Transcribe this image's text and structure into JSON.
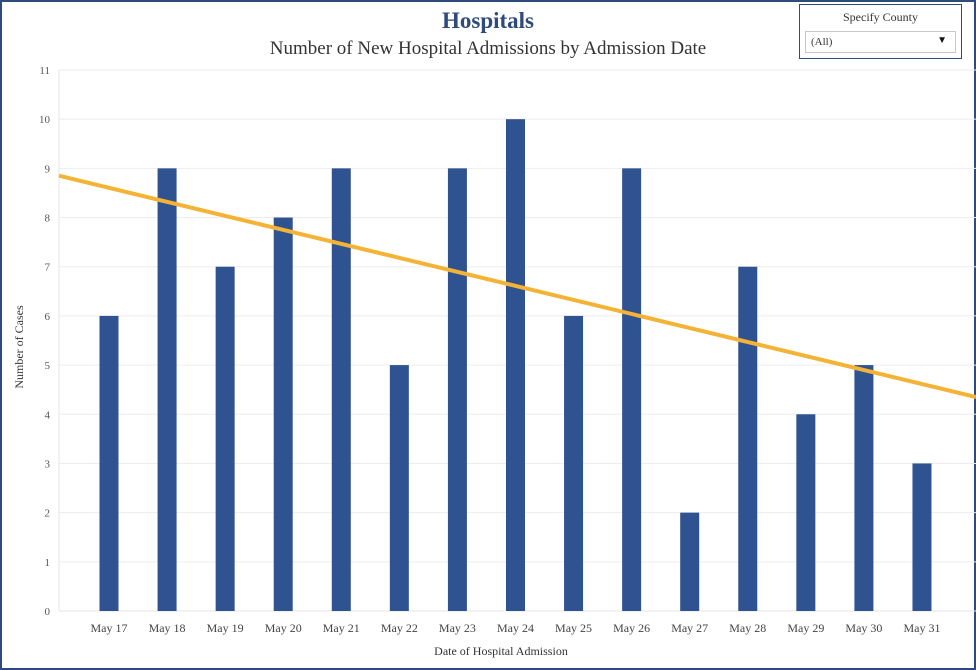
{
  "header": {
    "title": "Hospitals",
    "subtitle": "Number of New Hospital Admissions by Admission Date"
  },
  "filter": {
    "label": "Specify County",
    "selected": "(All)",
    "caret_icon": "caret-down"
  },
  "chart_data": {
    "type": "bar",
    "title": "Number of New Hospital Admissions by Admission Date",
    "xlabel": "Date of Hospital Admission",
    "ylabel": "Number of Cases",
    "categories": [
      "May 17",
      "May 18",
      "May 19",
      "May 20",
      "May 21",
      "May 22",
      "May 23",
      "May 24",
      "May 25",
      "May 26",
      "May 27",
      "May 28",
      "May 29",
      "May 30",
      "May 31"
    ],
    "values": [
      6,
      9,
      7,
      8,
      9,
      5,
      9,
      10,
      6,
      9,
      2,
      7,
      4,
      5,
      3
    ],
    "ylim": [
      0,
      11
    ],
    "yticks": [
      0,
      1,
      2,
      3,
      4,
      5,
      6,
      7,
      8,
      9,
      10,
      11
    ],
    "grid": true,
    "bar_color": "#2f5290",
    "trend_line": {
      "color": "#f5b335",
      "start_value": 8.85,
      "end_value": 4.35
    }
  }
}
